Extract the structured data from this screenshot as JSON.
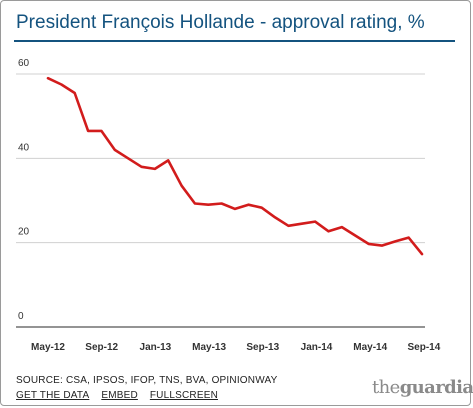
{
  "chart_data": {
    "type": "line",
    "title": "President François Hollande - approval rating, %",
    "xlabel": "",
    "ylabel": "",
    "ylim": [
      0,
      60
    ],
    "yticks": [
      0,
      20,
      40,
      60
    ],
    "xticks": [
      "May-12",
      "Sep-12",
      "Jan-13",
      "May-13",
      "Sep-13",
      "Jan-14",
      "May-14",
      "Sep-14"
    ],
    "grid": true,
    "legend": "none",
    "color": "#d21c1c",
    "series": [
      {
        "x": [
          "2012-05",
          "2012-06",
          "2012-07",
          "2012-08",
          "2012-09",
          "2012-10",
          "2012-11",
          "2012-12",
          "2013-01",
          "2013-02",
          "2013-03",
          "2013-04",
          "2013-05",
          "2013-06",
          "2013-07",
          "2013-08",
          "2013-09",
          "2013-10",
          "2013-11",
          "2013-12",
          "2014-01",
          "2014-02",
          "2014-03",
          "2014-04",
          "2014-05",
          "2014-06",
          "2014-07",
          "2014-08",
          "2014-09"
        ],
        "values": [
          59,
          57.5,
          55.5,
          46.5,
          46.5,
          42,
          40,
          38,
          37.5,
          39.5,
          33.5,
          29.3,
          29,
          29.3,
          28,
          29,
          28.3,
          26,
          24,
          24.5,
          25,
          22.7,
          23.7,
          21.7,
          19.7,
          19.3,
          20.3,
          21.2,
          17.3
        ]
      }
    ]
  },
  "footer": {
    "source": "SOURCE: CSA, IPSOS, IFOP, TNS, BVA, OPINIONWAY",
    "links": [
      "GET THE DATA",
      "EMBED",
      "FULLSCREEN"
    ],
    "logo": {
      "prefix": "the",
      "name": "guardian"
    }
  }
}
